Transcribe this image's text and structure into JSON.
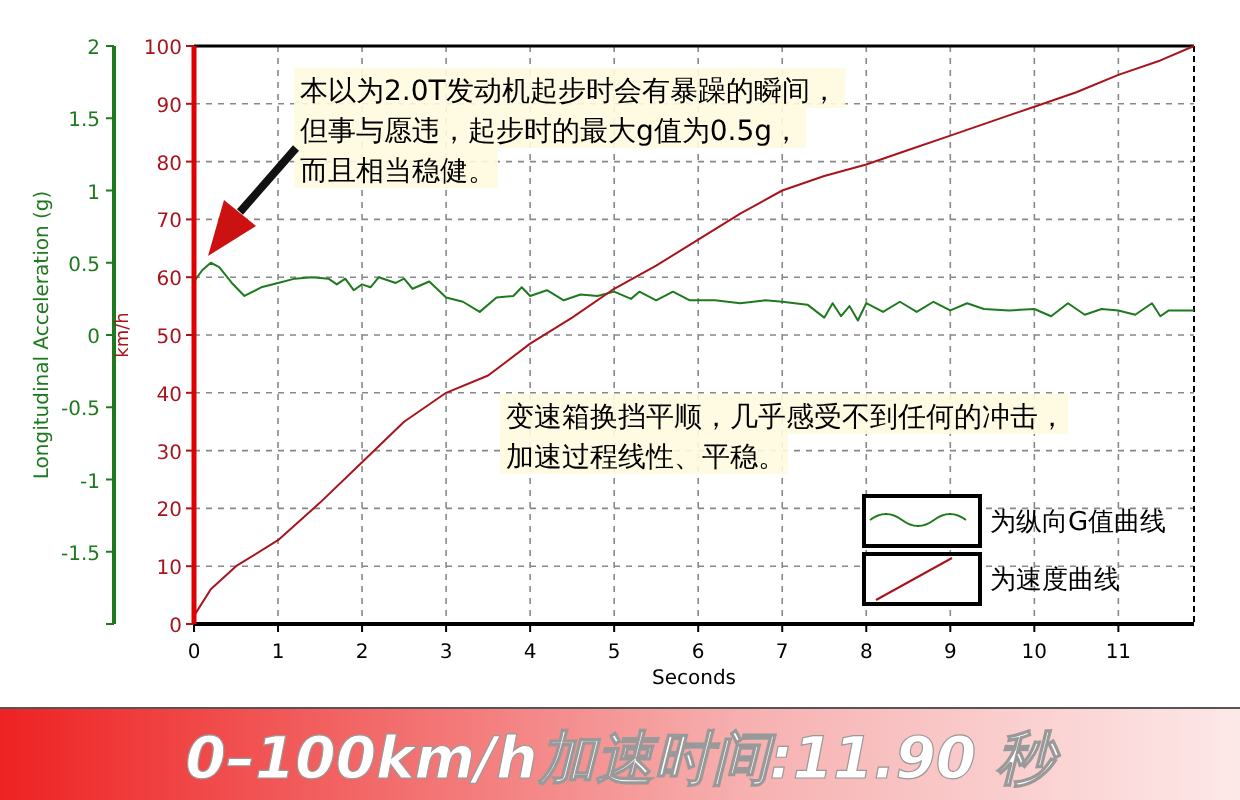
{
  "chart_data": {
    "type": "line",
    "title": "0–100km/h加速时间:11.90 秒",
    "xlabel": "Seconds",
    "ylabel": "Longitudinal Acceleration (g)",
    "y2label": "km/h",
    "annotations": [
      "本以为2.0T发动机起步时会有暴躁的瞬间，但事与愿违，起步时的最大g值为0.5g，而且相当稳健。",
      "变速箱换挡平顺，几乎感受不到任何的冲击，加速过程线性、平稳。"
    ],
    "xlim": [
      0,
      11.9
    ],
    "xticks": [
      0,
      1,
      2,
      3,
      4,
      5,
      6,
      7,
      8,
      9,
      10,
      11
    ],
    "ylim": [
      -2,
      2
    ],
    "yticks": [
      {
        "value": -2,
        "label": null
      },
      -1.5,
      -1,
      -0.5,
      0,
      0.5,
      1,
      1.5,
      2
    ],
    "y2lim": [
      0,
      100
    ],
    "y2ticks": [
      0,
      10,
      20,
      30,
      40,
      50,
      60,
      70,
      80,
      90,
      100
    ],
    "grid": true,
    "legend": "bottom right",
    "line_style": "solid",
    "marker": "none",
    "series": [
      {
        "name": "为纵向G值曲线",
        "color": "#1f7a1f",
        "axis": "y",
        "x": [
          0,
          0.1,
          0.2,
          0.3,
          0.45,
          0.6,
          0.8,
          1.0,
          1.2,
          1.4,
          1.6,
          1.7,
          1.8,
          1.9,
          2.0,
          2.1,
          2.2,
          2.4,
          2.5,
          2.6,
          2.8,
          3.0,
          3.2,
          3.4,
          3.6,
          3.8,
          3.9,
          4.0,
          4.2,
          4.4,
          4.6,
          4.8,
          5.0,
          5.2,
          5.3,
          5.5,
          5.7,
          5.9,
          6.2,
          6.5,
          6.8,
          7.0,
          7.3,
          7.5,
          7.6,
          7.7,
          7.8,
          7.9,
          8.0,
          8.2,
          8.4,
          8.6,
          8.8,
          9.0,
          9.2,
          9.4,
          9.7,
          10.0,
          10.2,
          10.4,
          10.6,
          10.8,
          11.0,
          11.2,
          11.4,
          11.5,
          11.6,
          11.9
        ],
        "values": [
          0.37,
          0.45,
          0.5,
          0.47,
          0.36,
          0.27,
          0.33,
          0.36,
          0.39,
          0.4,
          0.39,
          0.35,
          0.39,
          0.31,
          0.35,
          0.33,
          0.4,
          0.36,
          0.39,
          0.32,
          0.37,
          0.26,
          0.23,
          0.16,
          0.26,
          0.27,
          0.33,
          0.27,
          0.31,
          0.24,
          0.28,
          0.27,
          0.3,
          0.25,
          0.3,
          0.24,
          0.3,
          0.24,
          0.24,
          0.22,
          0.24,
          0.23,
          0.21,
          0.12,
          0.22,
          0.13,
          0.2,
          0.1,
          0.22,
          0.16,
          0.23,
          0.16,
          0.23,
          0.17,
          0.22,
          0.18,
          0.17,
          0.18,
          0.13,
          0.22,
          0.14,
          0.18,
          0.17,
          0.14,
          0.22,
          0.13,
          0.17,
          0.17
        ]
      },
      {
        "name": "为速度曲线",
        "color": "#a8141c",
        "axis": "y2",
        "x": [
          0,
          0.2,
          0.5,
          1,
          1.5,
          2,
          2.5,
          3,
          3.5,
          4,
          4.5,
          5,
          5.5,
          6,
          6.5,
          7,
          7.5,
          8,
          8.5,
          9,
          9.5,
          10,
          10.5,
          11,
          11.5,
          11.9
        ],
        "values": [
          1.4,
          6,
          10,
          14.5,
          21,
          28,
          35,
          40,
          43,
          48.5,
          53,
          58,
          62,
          66.5,
          71,
          75,
          77.5,
          79.5,
          82,
          84.5,
          87,
          89.5,
          92,
          95,
          97.5,
          100
        ]
      }
    ]
  }
}
